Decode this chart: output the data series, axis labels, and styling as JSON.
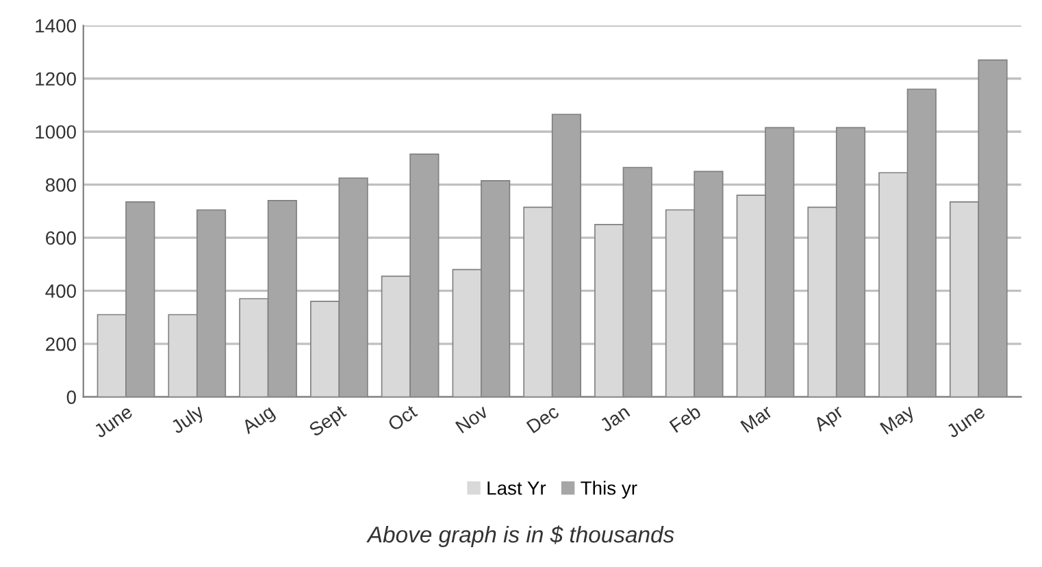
{
  "chart_data": {
    "type": "bar",
    "categories": [
      "June",
      "July",
      "Aug",
      "Sept",
      "Oct",
      "Nov",
      "Dec",
      "Jan",
      "Feb",
      "Mar",
      "Apr",
      "May",
      "June"
    ],
    "series": [
      {
        "name": "Last Yr",
        "color": "#d9d9d9",
        "values": [
          310,
          310,
          370,
          360,
          455,
          480,
          715,
          650,
          705,
          760,
          715,
          845,
          735
        ]
      },
      {
        "name": "This yr",
        "color": "#a6a6a6",
        "values": [
          735,
          705,
          740,
          825,
          915,
          815,
          1065,
          865,
          850,
          1015,
          1015,
          1160,
          1270
        ]
      }
    ],
    "ylim": [
      0,
      1400
    ],
    "yticks": [
      0,
      200,
      400,
      600,
      800,
      1000,
      1200,
      1400
    ],
    "grid": "y",
    "legend": "bottom",
    "annotations": [
      "Above graph is in $ thousands"
    ]
  }
}
